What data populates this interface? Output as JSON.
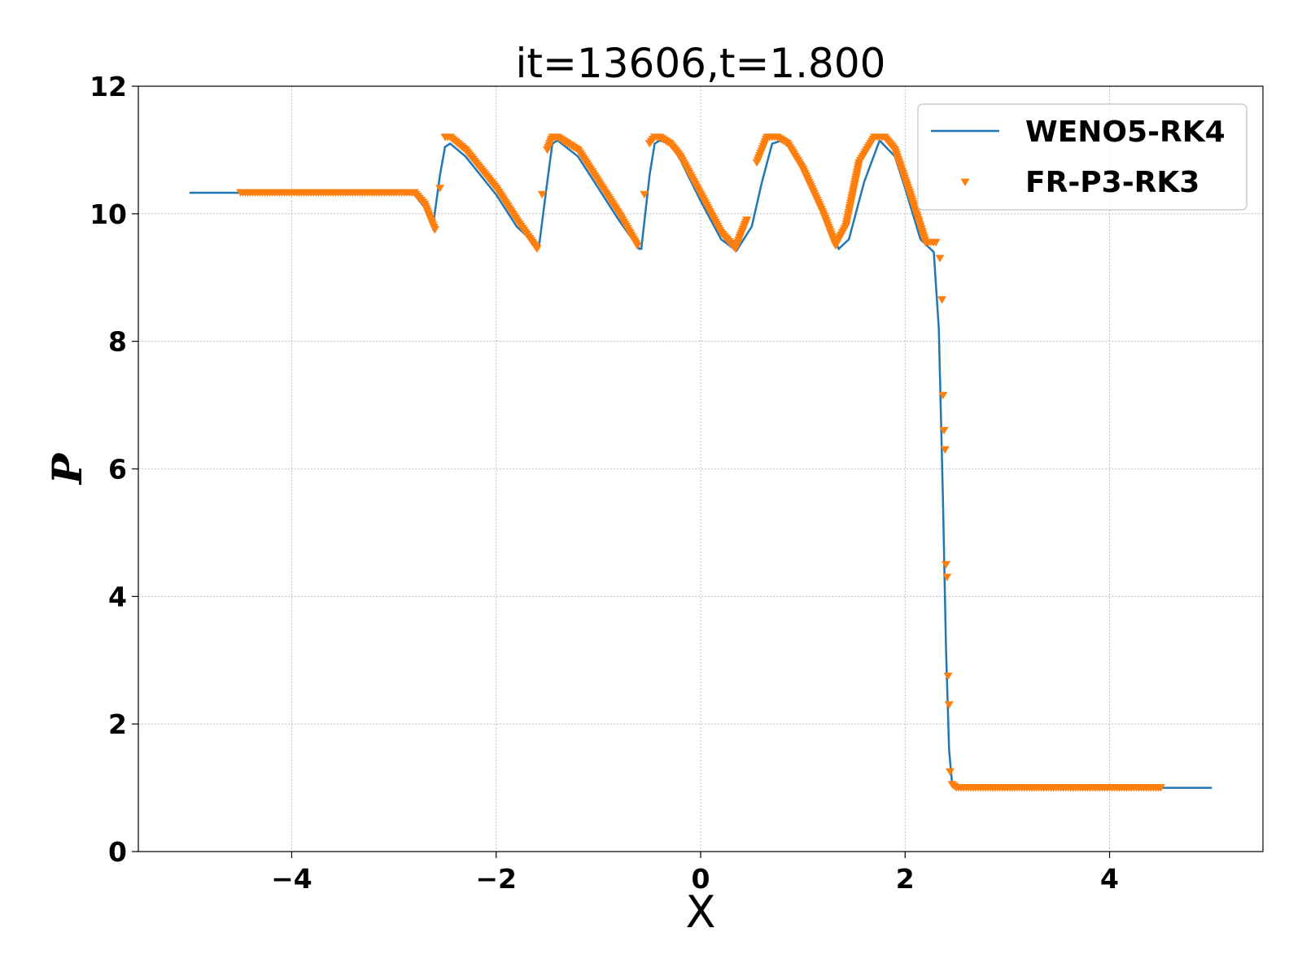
{
  "chart_data": {
    "type": "line",
    "title": "it=13606,t=1.800",
    "xlabel": "X",
    "ylabel": "P",
    "xlim": [
      -5.5,
      5.5
    ],
    "ylim": [
      0,
      12
    ],
    "xticks": [
      -4,
      -2,
      0,
      2,
      4
    ],
    "xtick_labels": [
      "−4",
      "−2",
      "0",
      "2",
      "4"
    ],
    "yticks": [
      0,
      2,
      4,
      6,
      8,
      10,
      12
    ],
    "ytick_labels": [
      "0",
      "2",
      "4",
      "6",
      "8",
      "10",
      "12"
    ],
    "grid": true,
    "legend": "top-right",
    "series": [
      {
        "name": "WENO5-RK4",
        "style": "line",
        "color": "#1f77b4",
        "x": [
          -5.0,
          -4.5,
          -4.0,
          -3.5,
          -3.0,
          -2.8,
          -2.7,
          -2.62,
          -2.55,
          -2.5,
          -2.45,
          -2.3,
          -2.0,
          -1.8,
          -1.6,
          -1.58,
          -1.5,
          -1.45,
          -1.4,
          -1.2,
          -1.0,
          -0.8,
          -0.6,
          -0.58,
          -0.5,
          -0.45,
          -0.4,
          -0.3,
          -0.2,
          0.0,
          0.2,
          0.35,
          0.5,
          0.6,
          0.7,
          0.8,
          1.0,
          1.2,
          1.35,
          1.45,
          1.6,
          1.75,
          1.9,
          2.0,
          2.15,
          2.28,
          2.33,
          2.37,
          2.4,
          2.43,
          2.46,
          2.5,
          3.0,
          4.0,
          4.5,
          5.0
        ],
        "y": [
          10.33,
          10.33,
          10.33,
          10.33,
          10.33,
          10.3,
          10.1,
          9.78,
          10.6,
          11.05,
          11.1,
          10.9,
          10.3,
          9.8,
          9.5,
          9.5,
          10.5,
          11.1,
          11.15,
          10.9,
          10.4,
          9.9,
          9.45,
          9.45,
          10.6,
          11.1,
          11.15,
          11.1,
          10.85,
          10.2,
          9.6,
          9.42,
          9.8,
          10.5,
          11.1,
          11.15,
          10.8,
          10.0,
          9.45,
          9.6,
          10.5,
          11.15,
          10.9,
          10.4,
          9.6,
          9.4,
          8.2,
          5.5,
          3.2,
          1.6,
          1.05,
          1.0,
          1.0,
          1.0,
          1.0,
          1.0
        ]
      },
      {
        "name": "FR-P3-RK3",
        "style": "marker",
        "marker": "triangle-down",
        "color": "#ff7f0e",
        "x": [
          -4.5,
          -4.0,
          -3.5,
          -3.0,
          -2.8,
          -2.7,
          -2.6,
          -2.55,
          -2.5,
          -2.45,
          -2.3,
          -2.0,
          -1.8,
          -1.6,
          -1.55,
          -1.5,
          -1.45,
          -1.4,
          -1.2,
          -1.0,
          -0.8,
          -0.62,
          -0.55,
          -0.5,
          -0.45,
          -0.4,
          -0.3,
          -0.2,
          0.0,
          0.2,
          0.34,
          0.45,
          0.55,
          0.65,
          0.75,
          0.85,
          1.0,
          1.2,
          1.32,
          1.42,
          1.55,
          1.7,
          1.8,
          1.9,
          2.05,
          2.2,
          2.3,
          2.34,
          2.36,
          2.37,
          2.38,
          2.39,
          2.4,
          2.41,
          2.42,
          2.43,
          2.44,
          2.46,
          2.5,
          3.0,
          3.5,
          4.0,
          4.5
        ],
        "y": [
          10.33,
          10.33,
          10.33,
          10.33,
          10.33,
          10.15,
          9.75,
          10.4,
          11.2,
          11.2,
          11.0,
          10.4,
          9.9,
          9.45,
          10.3,
          11.0,
          11.2,
          11.2,
          11.0,
          10.5,
          10.0,
          9.5,
          10.3,
          11.1,
          11.2,
          11.2,
          11.1,
          10.9,
          10.3,
          9.7,
          9.45,
          9.9,
          10.8,
          11.2,
          11.2,
          11.1,
          10.7,
          10.0,
          9.5,
          9.8,
          10.8,
          11.2,
          11.2,
          11.0,
          10.3,
          9.55,
          9.55,
          9.3,
          8.65,
          7.15,
          6.6,
          6.3,
          4.5,
          4.3,
          2.75,
          2.3,
          1.25,
          1.05,
          1.0,
          1.0,
          1.0,
          1.0,
          1.0
        ]
      }
    ]
  }
}
